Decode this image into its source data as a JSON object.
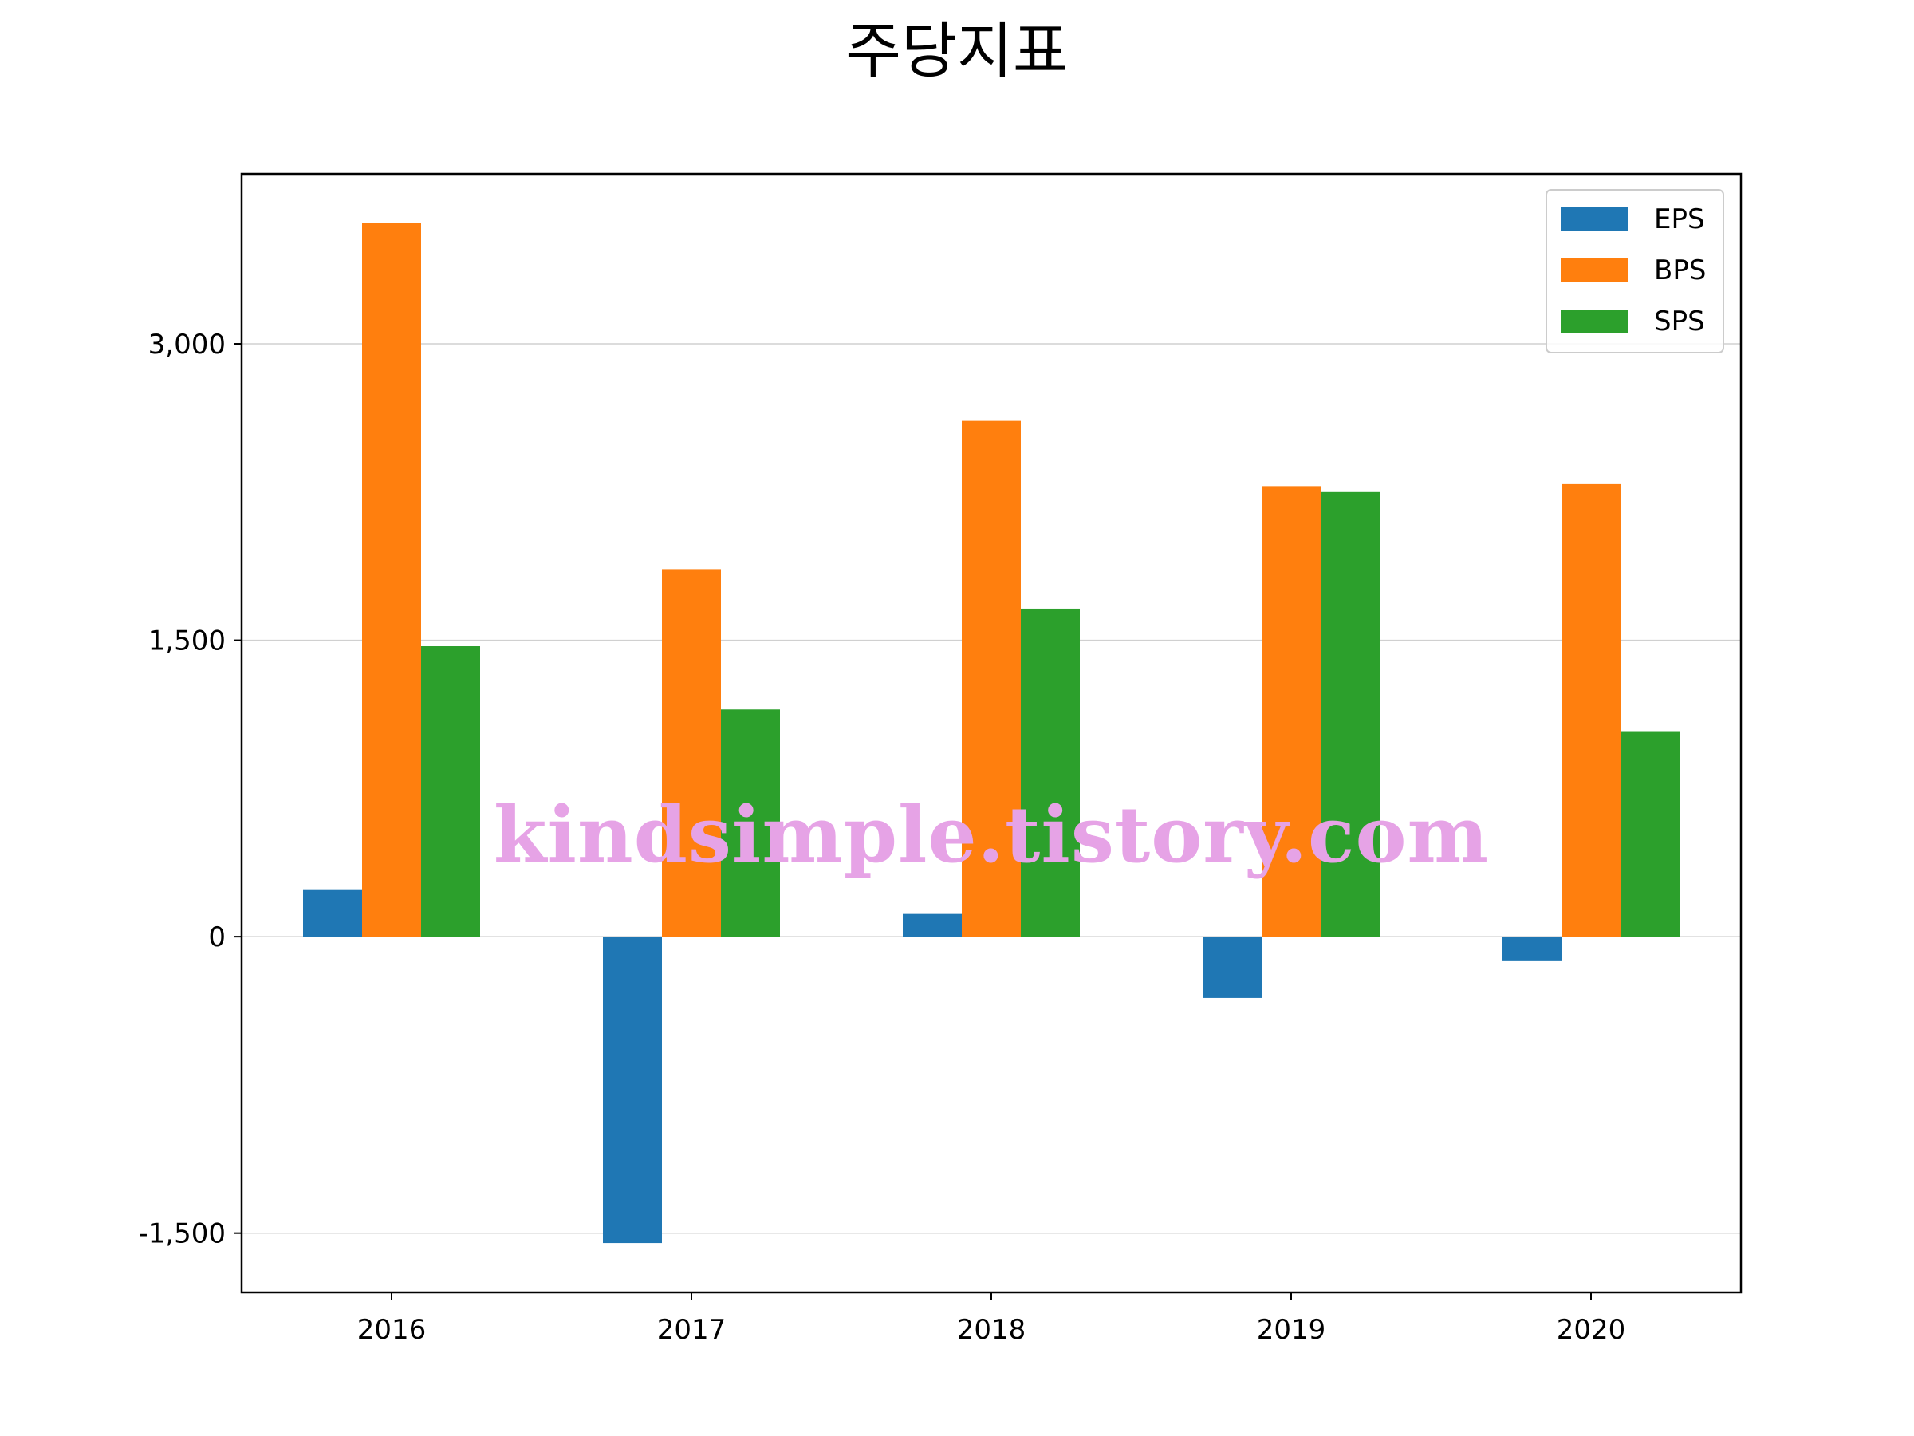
{
  "chart_data": {
    "type": "bar",
    "title": "주당지표",
    "categories": [
      "2016",
      "2017",
      "2018",
      "2019",
      "2020"
    ],
    "series": [
      {
        "name": "EPS",
        "color": "#1f77b4",
        "values": [
          240,
          -1550,
          115,
          -310,
          -120
        ]
      },
      {
        "name": "BPS",
        "color": "#ff7f0e",
        "values": [
          3610,
          1860,
          2610,
          2280,
          2290
        ]
      },
      {
        "name": "SPS",
        "color": "#2ca02c",
        "values": [
          1470,
          1150,
          1660,
          2250,
          1040
        ]
      }
    ],
    "yticks": [
      -1500,
      0,
      1500,
      3000
    ],
    "ytick_labels": [
      "-1,500",
      "0",
      "1,500",
      "3,000"
    ],
    "ylim": [
      -1800,
      3860
    ],
    "grid": "horizontal",
    "legend_position": "top-right",
    "xlabel": "",
    "ylabel": ""
  },
  "watermark": "kindsimple.tistory.com",
  "watermark_color": "#e6a3e6"
}
